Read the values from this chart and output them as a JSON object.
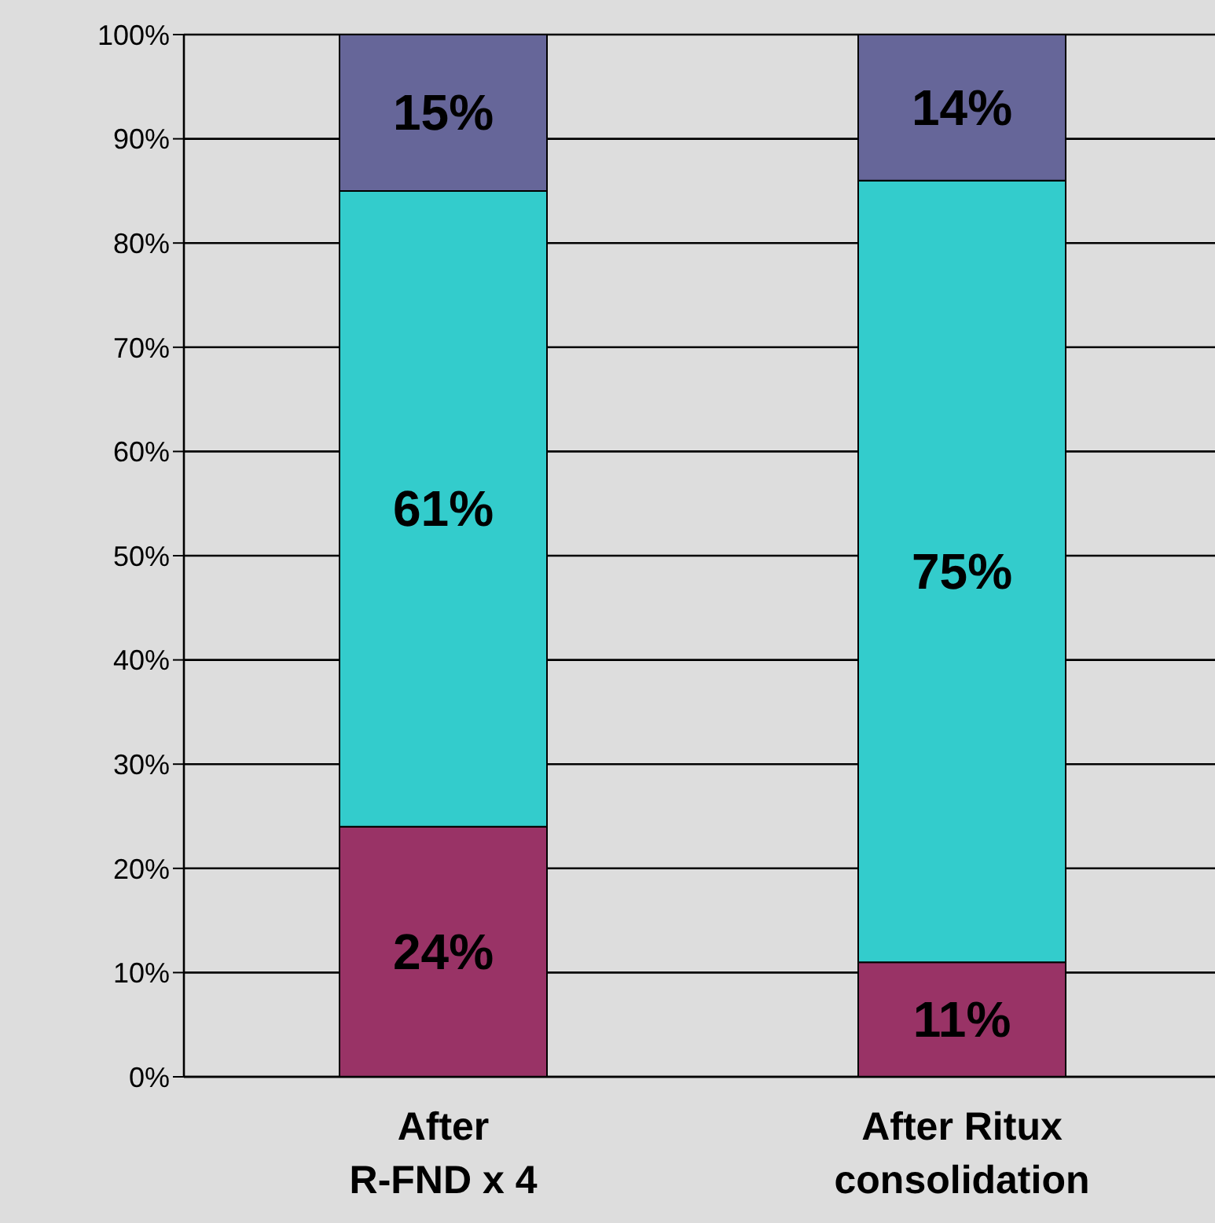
{
  "chart_data": {
    "type": "bar",
    "stacked": true,
    "categories": [
      "After\nR-FND x 4",
      "After Ritux\nconsolidation"
    ],
    "series": [
      {
        "color": "#993366",
        "values": [
          24,
          11
        ],
        "value_labels": [
          "24%",
          "11%"
        ]
      },
      {
        "color": "#33cccc",
        "values": [
          61,
          75
        ],
        "value_labels": [
          "61%",
          "75%"
        ]
      },
      {
        "color": "#666699",
        "values": [
          15,
          14
        ],
        "value_labels": [
          "15%",
          "14%"
        ]
      }
    ],
    "ylim": [
      0,
      100
    ],
    "yticks": [
      {
        "value": 0,
        "label": "0%"
      },
      {
        "value": 10,
        "label": "10%"
      },
      {
        "value": 20,
        "label": "20%"
      },
      {
        "value": 30,
        "label": "30%"
      },
      {
        "value": 40,
        "label": "40%"
      },
      {
        "value": 50,
        "label": "50%"
      },
      {
        "value": 60,
        "label": "60%"
      },
      {
        "value": 70,
        "label": "70%"
      },
      {
        "value": 80,
        "label": "80%"
      },
      {
        "value": 90,
        "label": "90%"
      },
      {
        "value": 100,
        "label": "100%"
      }
    ],
    "grid": "y",
    "legend": false
  }
}
